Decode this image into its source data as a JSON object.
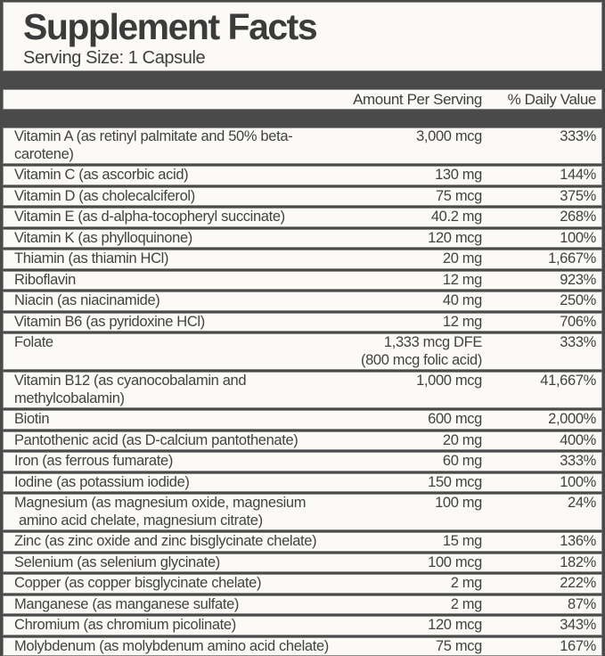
{
  "label": {
    "title": "Supplement Facts",
    "serving_size": "Serving Size: 1 Capsule",
    "columns": {
      "amount": "Amount Per Serving",
      "daily_value": "% Daily Value"
    },
    "colors": {
      "background_bar": "#4a4a4a",
      "panel_background": "#fbfaf6",
      "panel_border": "#8c8c8c",
      "text": "#3e3e3e"
    },
    "nutrients": [
      {
        "name": "Vitamin A (as retinyl palmitate and 50% beta-carotene)",
        "amount": "3,000 mcg",
        "daily_value": "333%"
      },
      {
        "name": "Vitamin C (as ascorbic acid)",
        "amount": "130 mg",
        "daily_value": "144%"
      },
      {
        "name": "Vitamin D (as cholecalciferol)",
        "amount": "75 mcg",
        "daily_value": "375%"
      },
      {
        "name": "Vitamin E (as d-alpha-tocopheryl succinate)",
        "amount": "40.2 mg",
        "daily_value": "268%"
      },
      {
        "name": "Vitamin K (as phylloquinone)",
        "amount": "120 mcg",
        "daily_value": "100%"
      },
      {
        "name": "Thiamin (as thiamin HCl)",
        "amount": "20 mg",
        "daily_value": "1,667%"
      },
      {
        "name": "Riboflavin",
        "amount": "12 mg",
        "daily_value": "923%"
      },
      {
        "name": "Niacin (as niacinamide)",
        "amount": "40 mg",
        "daily_value": "250%"
      },
      {
        "name": "Vitamin B6 (as pyridoxine HCl)",
        "amount": "12 mg",
        "daily_value": "706%"
      },
      {
        "name": "Folate",
        "amount": "1,333 mcg DFE",
        "amount_line2": "(800 mcg folic acid)",
        "daily_value": "333%"
      },
      {
        "name": "Vitamin B12 (as cyanocobalamin and methylcobalamin)",
        "amount": "1,000 mcg",
        "daily_value": "41,667%"
      },
      {
        "name": "Biotin",
        "amount": "600 mcg",
        "daily_value": "2,000%"
      },
      {
        "name": "Pantothenic acid (as D-calcium pantothenate)",
        "amount": "20 mg",
        "daily_value": "400%"
      },
      {
        "name": "Iron (as ferrous fumarate)",
        "amount": "60 mg",
        "daily_value": "333%"
      },
      {
        "name": "Iodine (as potassium iodide)",
        "amount": "150 mcg",
        "daily_value": "100%"
      },
      {
        "name": "Magnesium (as magnesium oxide, magnesium",
        "name_line2": "amino acid chelate, magnesium citrate)",
        "amount": "100 mg",
        "daily_value": "24%"
      },
      {
        "name": "Zinc (as zinc oxide and zinc bisglycinate chelate)",
        "amount": "15 mg",
        "daily_value": "136%"
      },
      {
        "name": "Selenium (as selenium glycinate)",
        "amount": "100 mcg",
        "daily_value": "182%"
      },
      {
        "name": "Copper (as copper bisglycinate chelate)",
        "amount": "2 mg",
        "daily_value": "222%"
      },
      {
        "name": "Manganese (as manganese sulfate)",
        "amount": "2 mg",
        "daily_value": "87%"
      },
      {
        "name": "Chromium (as chromium picolinate)",
        "amount": "120 mcg",
        "daily_value": "343%"
      },
      {
        "name": "Molybdenum (as molybdenum amino acid chelate)",
        "amount": "75 mcg",
        "daily_value": "167%"
      }
    ]
  }
}
